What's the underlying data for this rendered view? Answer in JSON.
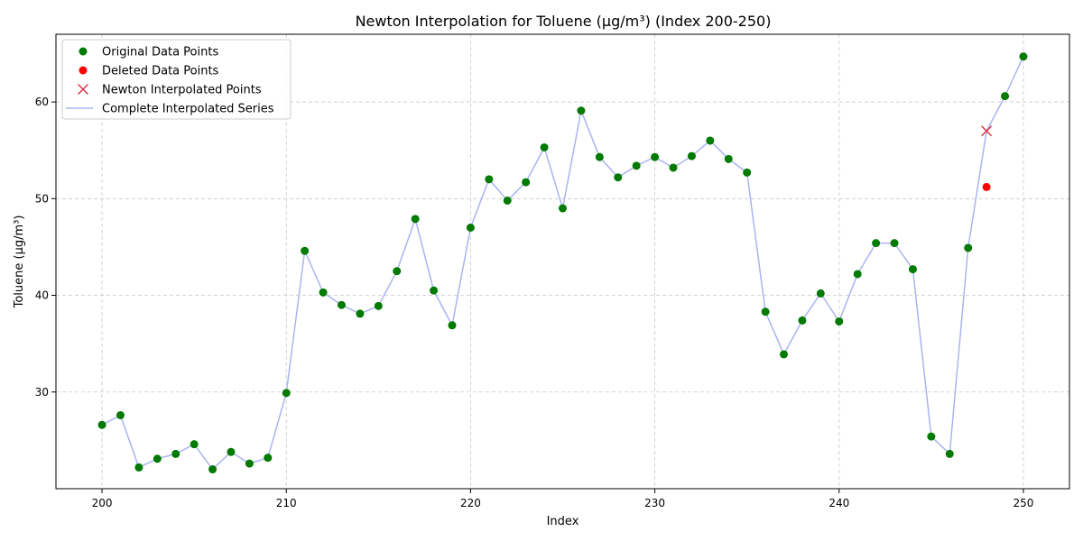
{
  "chart_data": {
    "type": "line",
    "title": "Newton Interpolation for Toluene (µg/m³) (Index 200-250)",
    "xlabel": "Index",
    "ylabel": "Toluene (µg/m³)",
    "xlim": [
      197.5,
      252.5
    ],
    "ylim": [
      20.0,
      67.0
    ],
    "xticks": [
      200,
      210,
      220,
      230,
      240,
      250
    ],
    "yticks": [
      30,
      40,
      50,
      60
    ],
    "grid": true,
    "legend_position": "top-left",
    "colors": {
      "original": "#007a00",
      "deleted": "#ff0000",
      "interpolated_marker": "#d7263d",
      "series_line": "#aab4f0"
    },
    "legend": [
      {
        "label": "Original Data Points",
        "marker": "circle",
        "color": "#007a00"
      },
      {
        "label": "Deleted Data Points",
        "marker": "circle",
        "color": "#ff0000"
      },
      {
        "label": "Newton Interpolated Points",
        "marker": "x",
        "color": "#d7263d"
      },
      {
        "label": "Complete Interpolated Series",
        "marker": "line",
        "color": "#aab4f0"
      }
    ],
    "series": [
      {
        "name": "Original Data Points",
        "x": [
          200,
          201,
          202,
          203,
          204,
          205,
          206,
          207,
          208,
          209,
          210,
          211,
          212,
          213,
          214,
          215,
          216,
          217,
          218,
          219,
          220,
          221,
          222,
          223,
          224,
          225,
          226,
          227,
          228,
          229,
          230,
          231,
          232,
          233,
          234,
          235,
          236,
          237,
          238,
          239,
          240,
          241,
          242,
          243,
          244,
          245,
          246,
          247,
          249,
          250
        ],
        "y": [
          26.6,
          27.6,
          22.2,
          23.1,
          23.6,
          24.6,
          22.0,
          23.8,
          22.6,
          23.2,
          29.9,
          44.6,
          40.3,
          39.0,
          38.1,
          38.9,
          42.5,
          47.9,
          40.5,
          36.9,
          47.0,
          52.0,
          49.8,
          51.7,
          55.3,
          49.0,
          59.1,
          54.3,
          52.2,
          53.4,
          54.3,
          53.2,
          54.4,
          56.0,
          54.1,
          52.7,
          38.3,
          33.9,
          37.4,
          40.2,
          37.3,
          42.2,
          45.4,
          45.4,
          42.7,
          25.4,
          23.6,
          44.9,
          60.6,
          64.7
        ]
      },
      {
        "name": "Deleted Data Points",
        "x": [
          248
        ],
        "y": [
          51.2
        ]
      },
      {
        "name": "Newton Interpolated Points",
        "x": [
          248
        ],
        "y": [
          57.0
        ]
      },
      {
        "name": "Complete Interpolated Series",
        "x": [
          200,
          201,
          202,
          203,
          204,
          205,
          206,
          207,
          208,
          209,
          210,
          211,
          212,
          213,
          214,
          215,
          216,
          217,
          218,
          219,
          220,
          221,
          222,
          223,
          224,
          225,
          226,
          227,
          228,
          229,
          230,
          231,
          232,
          233,
          234,
          235,
          236,
          237,
          238,
          239,
          240,
          241,
          242,
          243,
          244,
          245,
          246,
          247,
          248,
          249,
          250
        ],
        "y": [
          26.6,
          27.6,
          22.2,
          23.1,
          23.6,
          24.6,
          22.0,
          23.8,
          22.6,
          23.2,
          29.9,
          44.6,
          40.3,
          39.0,
          38.1,
          38.9,
          42.5,
          47.9,
          40.5,
          36.9,
          47.0,
          52.0,
          49.8,
          51.7,
          55.3,
          49.0,
          59.1,
          54.3,
          52.2,
          53.4,
          54.3,
          53.2,
          54.4,
          56.0,
          54.1,
          52.7,
          38.3,
          33.9,
          37.4,
          40.2,
          37.3,
          42.2,
          45.4,
          45.4,
          42.7,
          25.4,
          23.6,
          44.9,
          57.0,
          60.6,
          64.7
        ]
      }
    ]
  }
}
